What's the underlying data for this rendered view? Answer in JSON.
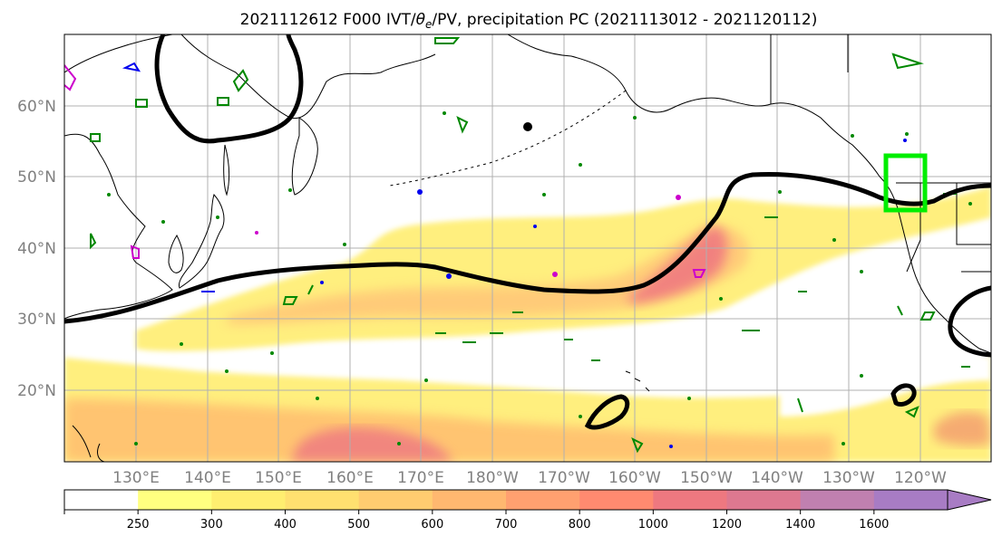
{
  "map": {
    "title_prefix": "2021112612 F000 IVT/",
    "title_theta": "θ",
    "title_sub": "e",
    "title_suffix": "/PV, precipitation PC (2021113012 - 2021120112)",
    "lat_labels": [
      "60°N",
      "50°N",
      "40°N",
      "30°N",
      "20°N"
    ],
    "lon_labels": [
      "130°E",
      "140°E",
      "150°E",
      "160°E",
      "170°E",
      "180°W",
      "170°W",
      "160°W",
      "150°W",
      "140°W",
      "130°W",
      "120°W"
    ],
    "extent": {
      "lon_min": 120,
      "lon_max": 250,
      "lat_min": 10,
      "lat_max": 70
    },
    "gridlines": true
  },
  "colorbar": {
    "levels": [
      "250",
      "300",
      "400",
      "500",
      "600",
      "700",
      "800",
      "1000",
      "1200",
      "1400",
      "1600"
    ],
    "colors": [
      "#ffffff",
      "#ffff80",
      "#ffee70",
      "#ffe070",
      "#ffcc70",
      "#ffb870",
      "#ffa070",
      "#ff8a70",
      "#ee7880",
      "#dd7890",
      "#c080b0",
      "#a87cc4"
    ],
    "extend": "max"
  },
  "colors": {
    "ivt_contour": "#000000",
    "highlight_box": "#00ee00",
    "pv_contour_green": "#008800",
    "pv_contour_blue": "#0000ee",
    "pv_contour_magenta": "#cc00cc",
    "precip_low": "#ffef70",
    "precip_mid": "#ffc070",
    "precip_high": "#f08080"
  }
}
